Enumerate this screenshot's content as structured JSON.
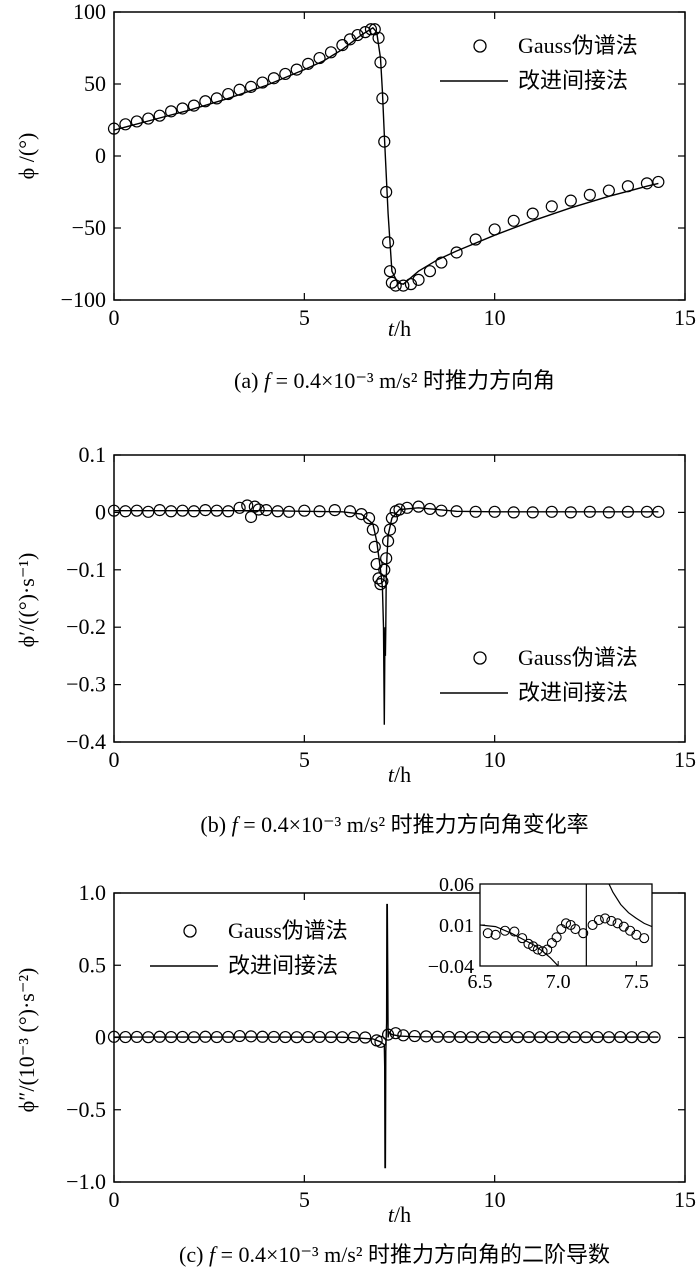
{
  "chart_data": [
    {
      "type": "line",
      "caption": "(a) f = 0.4×10⁻³ m/s² 时推力方向角",
      "caption_prefix": "(a) ",
      "caption_f": "f",
      "caption_rest": " = 0.4×10⁻³ m/s² 时推力方向角",
      "xlabel_var": "t",
      "xlabel_unit": "/h",
      "ylabel": "ϕ /(°)",
      "xlim": [
        0,
        15
      ],
      "ylim": [
        -100,
        100
      ],
      "xticks": [
        0,
        5,
        10,
        15
      ],
      "yticks": [
        -100,
        -50,
        0,
        50,
        100
      ],
      "xtick_labels": [
        "0",
        "5",
        "10",
        "15"
      ],
      "ytick_labels": [
        "−100",
        "−50",
        "0",
        "50",
        "100"
      ],
      "legend_position": "top-right",
      "series": [
        {
          "name": "Gauss伪谱法",
          "style": "markers",
          "x": [
            0.0,
            0.3,
            0.6,
            0.9,
            1.2,
            1.5,
            1.8,
            2.1,
            2.4,
            2.7,
            3.0,
            3.3,
            3.6,
            3.9,
            4.2,
            4.5,
            4.8,
            5.1,
            5.4,
            5.7,
            6.0,
            6.2,
            6.4,
            6.6,
            6.75,
            6.85,
            6.95,
            7.0,
            7.05,
            7.1,
            7.15,
            7.2,
            7.25,
            7.3,
            7.4,
            7.6,
            7.8,
            8.0,
            8.3,
            8.6,
            9.0,
            9.5,
            10.0,
            10.5,
            11.0,
            11.5,
            12.0,
            12.5,
            13.0,
            13.5,
            14.0,
            14.3
          ],
          "y": [
            19,
            22,
            24,
            26,
            28,
            31,
            33,
            35,
            38,
            40,
            43,
            46,
            48,
            51,
            54,
            57,
            60,
            64,
            68,
            72,
            77,
            81,
            84,
            86,
            88,
            88,
            82,
            65,
            40,
            10,
            -25,
            -60,
            -80,
            -88,
            -90,
            -90,
            -89,
            -86,
            -80,
            -74,
            -67,
            -58,
            -51,
            -45,
            -40,
            -35,
            -31,
            -27,
            -24,
            -21,
            -19,
            -18
          ]
        },
        {
          "name": "改进间接法",
          "style": "line",
          "x": [
            0,
            1,
            2,
            3,
            4,
            5,
            5.5,
            6.0,
            6.5,
            6.8,
            6.9,
            7.0,
            7.05,
            7.1,
            7.2,
            7.3,
            7.45,
            7.6,
            8.0,
            8.5,
            9,
            10,
            11,
            12,
            13,
            14,
            14.3
          ],
          "y": [
            18,
            25,
            32,
            40,
            49,
            60,
            66,
            74,
            84,
            89,
            86,
            68,
            45,
            15,
            -40,
            -80,
            -88,
            -89,
            -80,
            -72,
            -66,
            -55,
            -45,
            -36,
            -28,
            -21,
            -19
          ]
        }
      ]
    },
    {
      "type": "line",
      "caption": "(b) f = 0.4×10⁻³ m/s² 时推力方向角变化率",
      "caption_prefix": "(b) ",
      "caption_f": "f",
      "caption_rest": " = 0.4×10⁻³ m/s² 时推力方向角变化率",
      "xlabel_var": "t",
      "xlabel_unit": "/h",
      "ylabel": "ϕ′/((°)·s⁻¹)",
      "xlim": [
        0,
        15
      ],
      "ylim": [
        -0.4,
        0.1
      ],
      "xticks": [
        0,
        5,
        10,
        15
      ],
      "yticks": [
        -0.4,
        -0.3,
        -0.2,
        -0.1,
        0,
        0.1
      ],
      "xtick_labels": [
        "0",
        "5",
        "10",
        "15"
      ],
      "ytick_labels": [
        "−0.4",
        "−0.3",
        "−0.2",
        "−0.1",
        "0",
        "0.1"
      ],
      "legend_position": "bottom-right",
      "series": [
        {
          "name": "Gauss伪谱法",
          "style": "markers",
          "x": [
            0.0,
            0.3,
            0.6,
            0.9,
            1.2,
            1.5,
            1.8,
            2.1,
            2.4,
            2.7,
            3.0,
            3.3,
            3.5,
            3.6,
            3.7,
            3.8,
            4.0,
            4.3,
            4.6,
            5.0,
            5.4,
            5.8,
            6.2,
            6.5,
            6.7,
            6.8,
            6.85,
            6.9,
            6.95,
            7.0,
            7.05,
            7.1,
            7.15,
            7.2,
            7.25,
            7.3,
            7.4,
            7.5,
            7.7,
            8.0,
            8.3,
            8.6,
            9.0,
            9.5,
            10.0,
            10.5,
            11.0,
            11.5,
            12.0,
            12.5,
            13.0,
            13.5,
            14.0,
            14.3
          ],
          "y": [
            0.003,
            0.002,
            0.003,
            0.001,
            0.004,
            0.002,
            0.003,
            0.002,
            0.004,
            0.003,
            0.002,
            0.008,
            0.012,
            -0.008,
            0.01,
            0.005,
            0.004,
            0.002,
            0.001,
            0.003,
            0.002,
            0.004,
            0.002,
            -0.003,
            -0.01,
            -0.03,
            -0.06,
            -0.09,
            -0.115,
            -0.125,
            -0.12,
            -0.1,
            -0.08,
            -0.05,
            -0.03,
            -0.01,
            0.002,
            0.005,
            0.008,
            0.01,
            0.006,
            0.003,
            0.002,
            0.001,
            0.001,
            0.0,
            0.0,
            0.001,
            0.0,
            0.001,
            0.0,
            0.001,
            0.001,
            0.001
          ]
        },
        {
          "name": "改进间接法",
          "style": "line",
          "x": [
            0,
            1,
            2,
            3,
            4,
            5,
            6,
            6.5,
            6.8,
            6.9,
            7.0,
            7.05,
            7.08,
            7.1,
            7.12,
            7.13,
            7.14,
            7.15,
            7.17,
            7.2,
            7.3,
            7.5,
            8,
            9,
            10,
            11,
            12,
            13,
            14,
            14.3
          ],
          "y": [
            0.003,
            0.003,
            0.003,
            0.003,
            0.003,
            0.002,
            0.001,
            -0.003,
            -0.02,
            -0.05,
            -0.1,
            -0.13,
            -0.2,
            -0.37,
            -0.2,
            -0.25,
            -0.2,
            -0.12,
            -0.08,
            -0.04,
            -0.01,
            0.005,
            0.008,
            0.002,
            0.001,
            0.001,
            0.001,
            0.001,
            0.001,
            0.001
          ]
        }
      ]
    },
    {
      "type": "line",
      "caption": "(c) f = 0.4×10⁻³ m/s² 时推力方向角的二阶导数",
      "caption_prefix": "(c) ",
      "caption_f": "f",
      "caption_rest": " = 0.4×10⁻³ m/s² 时推力方向角的二阶导数",
      "xlabel_var": "t",
      "xlabel_unit": "/h",
      "ylabel": "ϕ″/(10⁻³ (°)·s⁻²)",
      "xlim": [
        0,
        15
      ],
      "ylim": [
        -1.0,
        1.0
      ],
      "xticks": [
        0,
        5,
        10,
        15
      ],
      "yticks": [
        -1.0,
        -0.5,
        0,
        0.5,
        1.0
      ],
      "xtick_labels": [
        "0",
        "5",
        "10",
        "15"
      ],
      "ytick_labels": [
        "−1.0",
        "−0.5",
        "0",
        "0.5",
        "1.0"
      ],
      "legend_position": "top-left",
      "series": [
        {
          "name": "Gauss伪谱法",
          "style": "markers",
          "x": [
            0.0,
            0.3,
            0.6,
            0.9,
            1.2,
            1.5,
            1.8,
            2.1,
            2.4,
            2.7,
            3.0,
            3.3,
            3.6,
            3.9,
            4.2,
            4.5,
            4.8,
            5.1,
            5.4,
            5.7,
            6.0,
            6.3,
            6.6,
            6.9,
            7.0,
            7.2,
            7.4,
            7.6,
            7.9,
            8.2,
            8.5,
            8.8,
            9.1,
            9.4,
            9.7,
            10.0,
            10.3,
            10.6,
            10.9,
            11.2,
            11.5,
            11.8,
            12.1,
            12.4,
            12.7,
            13.0,
            13.3,
            13.6,
            13.9,
            14.2
          ],
          "y": [
            0.005,
            0.003,
            0.004,
            0.002,
            0.005,
            0.003,
            0.004,
            0.002,
            0.005,
            0.003,
            0.004,
            0.01,
            0.008,
            0.005,
            0.004,
            0.003,
            0.002,
            0.003,
            0.004,
            0.003,
            0.002,
            0.003,
            0.0,
            -0.02,
            -0.03,
            0.02,
            0.03,
            0.015,
            0.01,
            0.008,
            0.005,
            0.004,
            0.003,
            0.002,
            0.003,
            0.002,
            0.003,
            0.002,
            0.003,
            0.002,
            0.003,
            0.002,
            0.003,
            0.002,
            0.003,
            0.002,
            0.003,
            0.002,
            0.003,
            0.002
          ]
        },
        {
          "name": "改进间接法",
          "style": "line",
          "x": [
            0,
            2,
            4,
            6,
            6.8,
            7.0,
            7.1,
            7.11,
            7.12,
            7.13,
            7.14,
            7.15,
            7.16,
            7.17,
            7.18,
            7.19,
            7.2,
            7.22,
            7.25,
            7.3,
            7.5,
            8,
            10,
            12,
            14,
            14.3
          ],
          "y": [
            0.003,
            0.003,
            0.003,
            0.002,
            -0.01,
            -0.03,
            -0.05,
            -0.2,
            -0.9,
            -0.9,
            -0.1,
            0.0,
            0.1,
            0.92,
            0.92,
            0.5,
            0.0,
            0.04,
            0.03,
            0.02,
            0.01,
            0.005,
            0.003,
            0.003,
            0.003,
            0.003
          ]
        }
      ],
      "inset": {
        "xlim": [
          6.5,
          7.6
        ],
        "ylim": [
          -0.04,
          0.06
        ],
        "xticks": [
          6.5,
          7.0,
          7.5
        ],
        "yticks": [
          -0.04,
          0.01,
          0.06
        ],
        "xtick_labels": [
          "6.5",
          "7.0",
          "7.5"
        ],
        "ytick_labels": [
          "−0.04",
          "0.01",
          "0.06"
        ],
        "markers": {
          "x": [
            6.55,
            6.6,
            6.66,
            6.72,
            6.77,
            6.81,
            6.84,
            6.87,
            6.9,
            6.93,
            6.96,
            6.99,
            7.02,
            7.05,
            7.08,
            7.11,
            7.16,
            7.22,
            7.26,
            7.3,
            7.34,
            7.38,
            7.42,
            7.46,
            7.5,
            7.55
          ],
          "y": [
            0.0,
            -0.002,
            0.003,
            0.002,
            -0.006,
            -0.013,
            -0.016,
            -0.02,
            -0.022,
            -0.02,
            -0.012,
            -0.005,
            0.005,
            0.012,
            0.01,
            0.005,
            0.0,
            0.01,
            0.016,
            0.018,
            0.015,
            0.012,
            0.008,
            0.003,
            -0.002,
            -0.006
          ]
        },
        "line": {
          "x": [
            6.5,
            6.6,
            6.7,
            6.8,
            6.85,
            6.9,
            6.95,
            7.0,
            7.05,
            7.1
          ],
          "y": [
            0.01,
            0.008,
            0.0,
            -0.01,
            -0.015,
            -0.022,
            -0.03,
            -0.04,
            -0.05,
            -0.06
          ]
        },
        "line2": {
          "x": [
            7.3,
            7.35,
            7.4,
            7.45,
            7.5,
            7.55,
            7.6
          ],
          "y": [
            0.07,
            0.05,
            0.035,
            0.025,
            0.018,
            0.012,
            0.008
          ]
        },
        "spike_x": 7.18
      }
    }
  ]
}
